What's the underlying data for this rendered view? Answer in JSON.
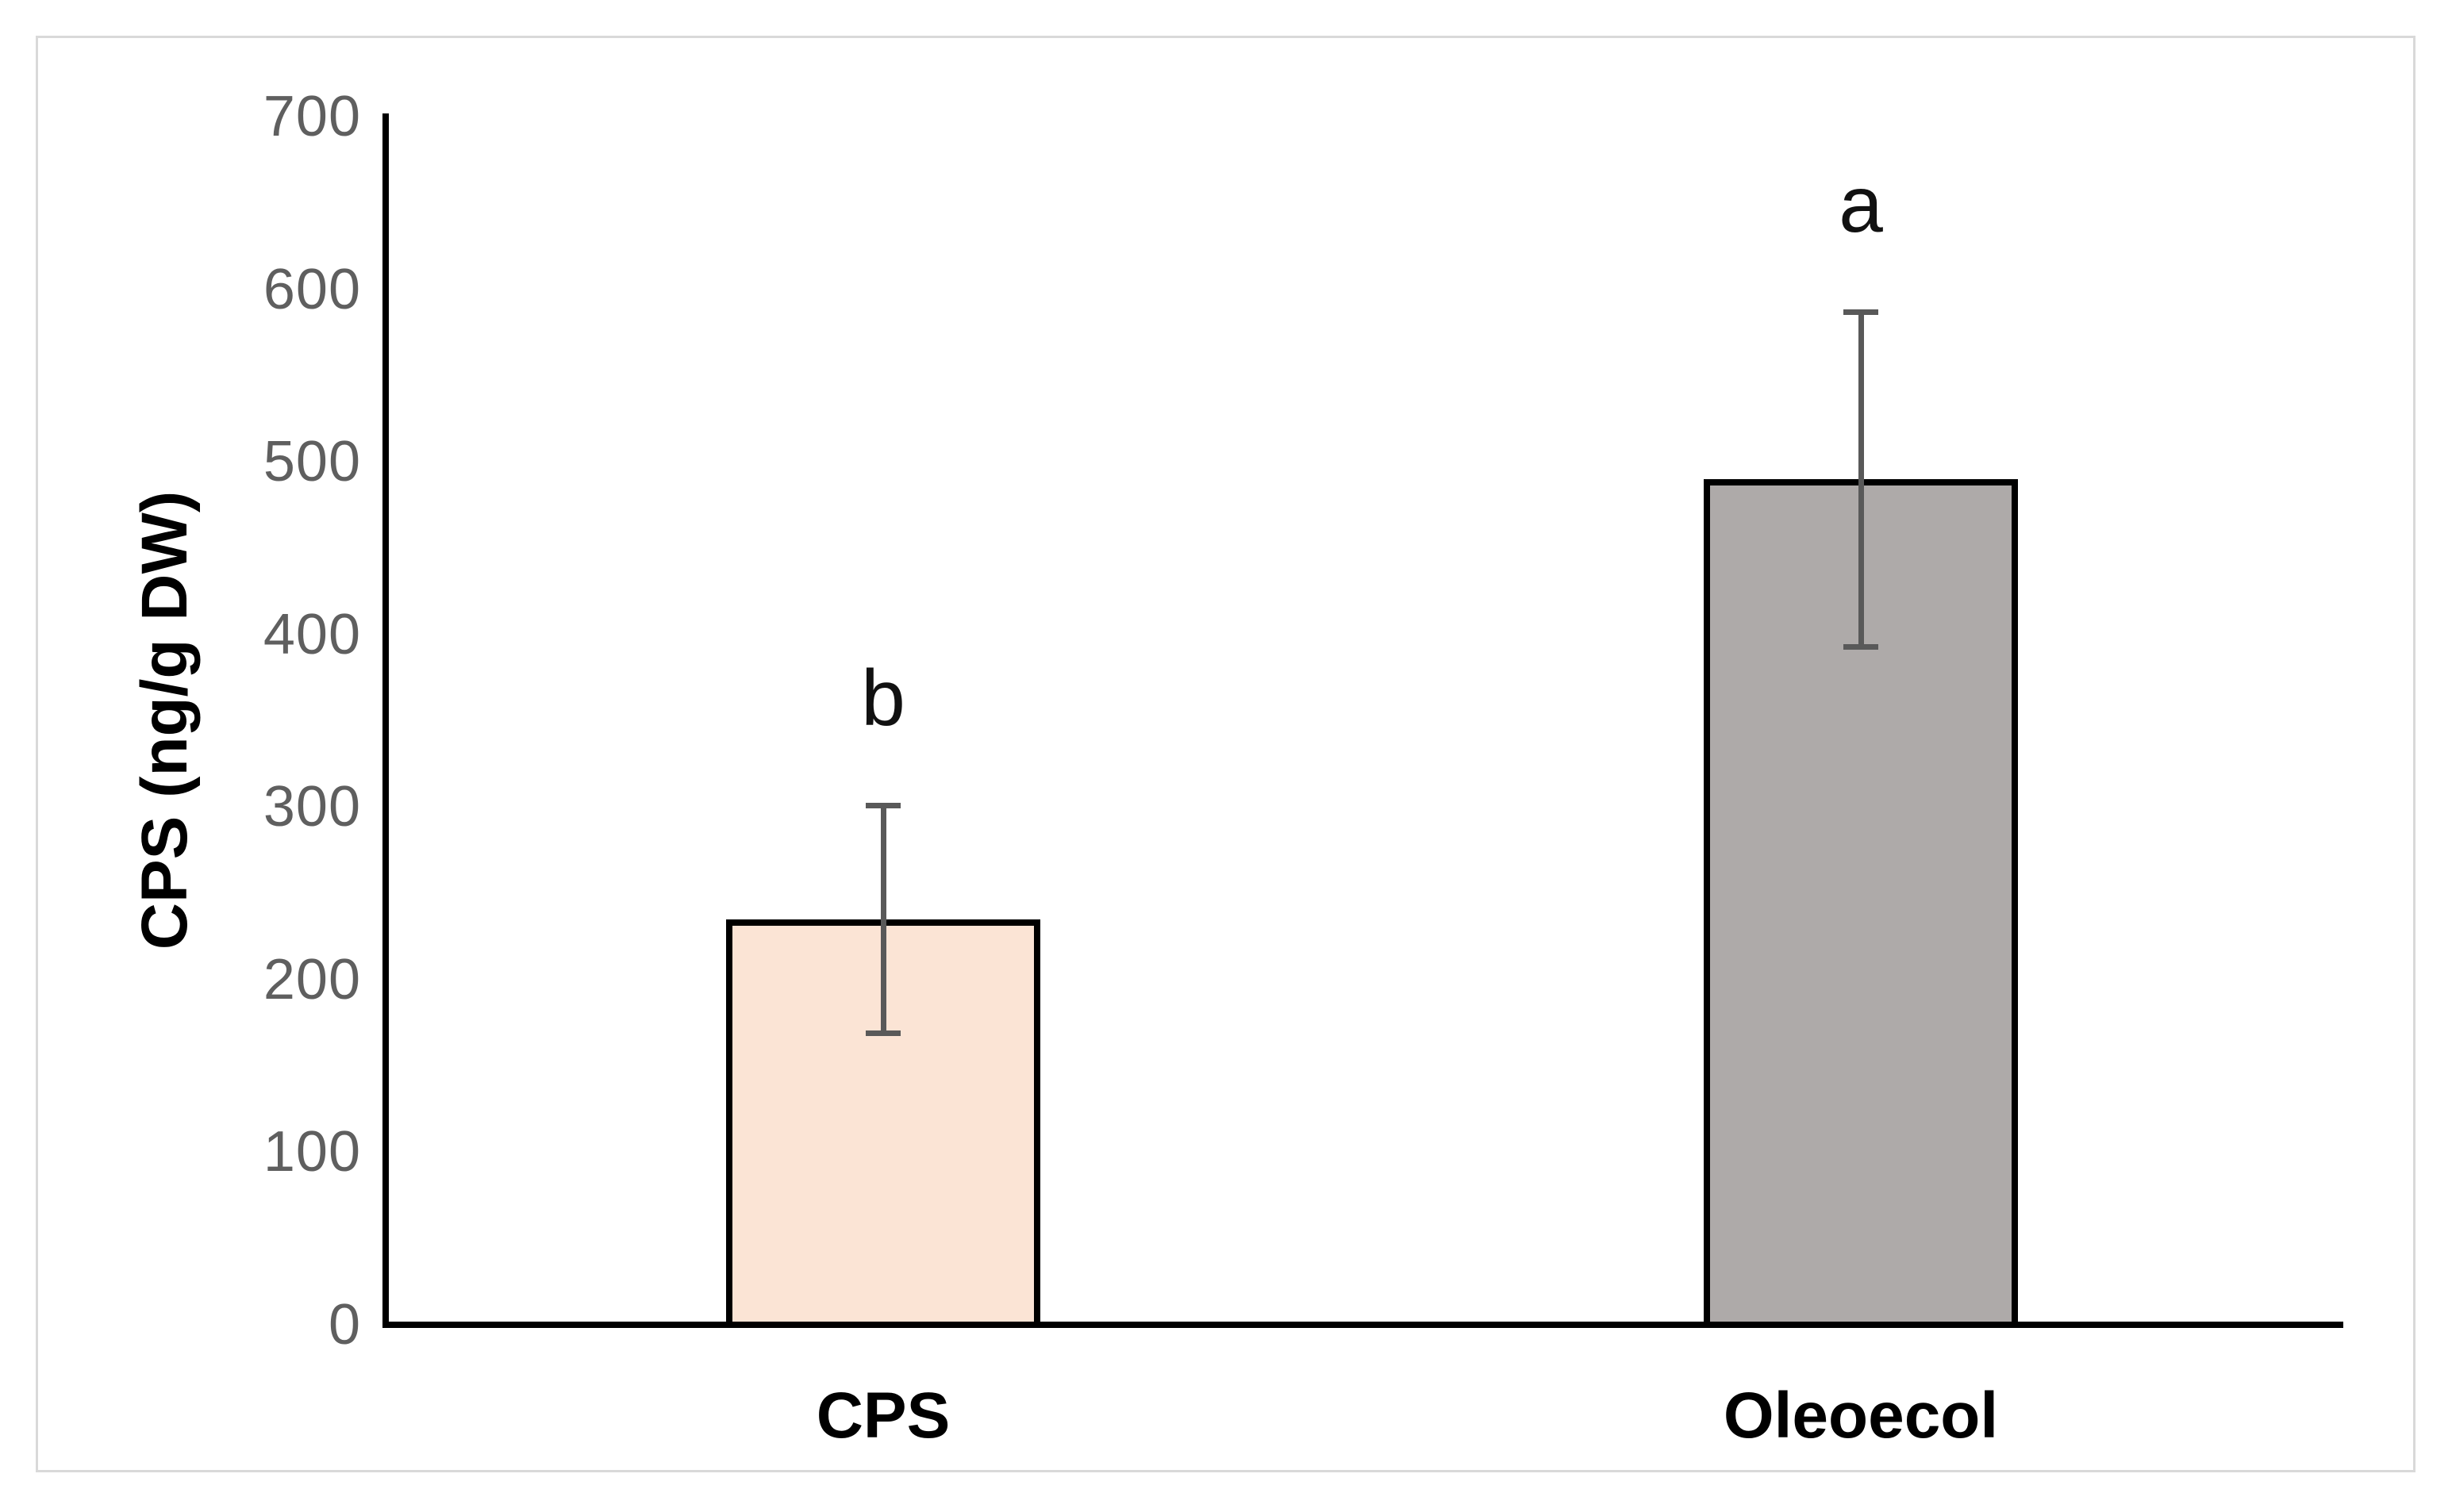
{
  "figure": {
    "border_color": "#d9d9d9",
    "background_color": "#ffffff"
  },
  "chart_data": {
    "type": "bar",
    "title": "",
    "xlabel": "",
    "ylabel": "CPS (ng/g DW)",
    "ylim": [
      0,
      700
    ],
    "yticks": [
      0,
      100,
      200,
      300,
      400,
      500,
      600,
      700
    ],
    "grid": false,
    "legend": false,
    "categories": [
      "CPS",
      "Oleoecol"
    ],
    "series": [
      {
        "name": "CPS (ng/g DW)",
        "values": [
          235,
          490
        ],
        "errors": [
          66,
          97
        ],
        "bar_fill_colors": [
          "#fbe4d5",
          "#aeaaa9"
        ],
        "bar_border_color": "#000000"
      }
    ],
    "annotations": [
      {
        "text": "b",
        "category": "CPS"
      },
      {
        "text": "a",
        "category": "Oleoecol"
      }
    ],
    "axis_color": "#000000",
    "tick_label_color": "#5f5f5f",
    "error_bar_color": "#595959"
  }
}
